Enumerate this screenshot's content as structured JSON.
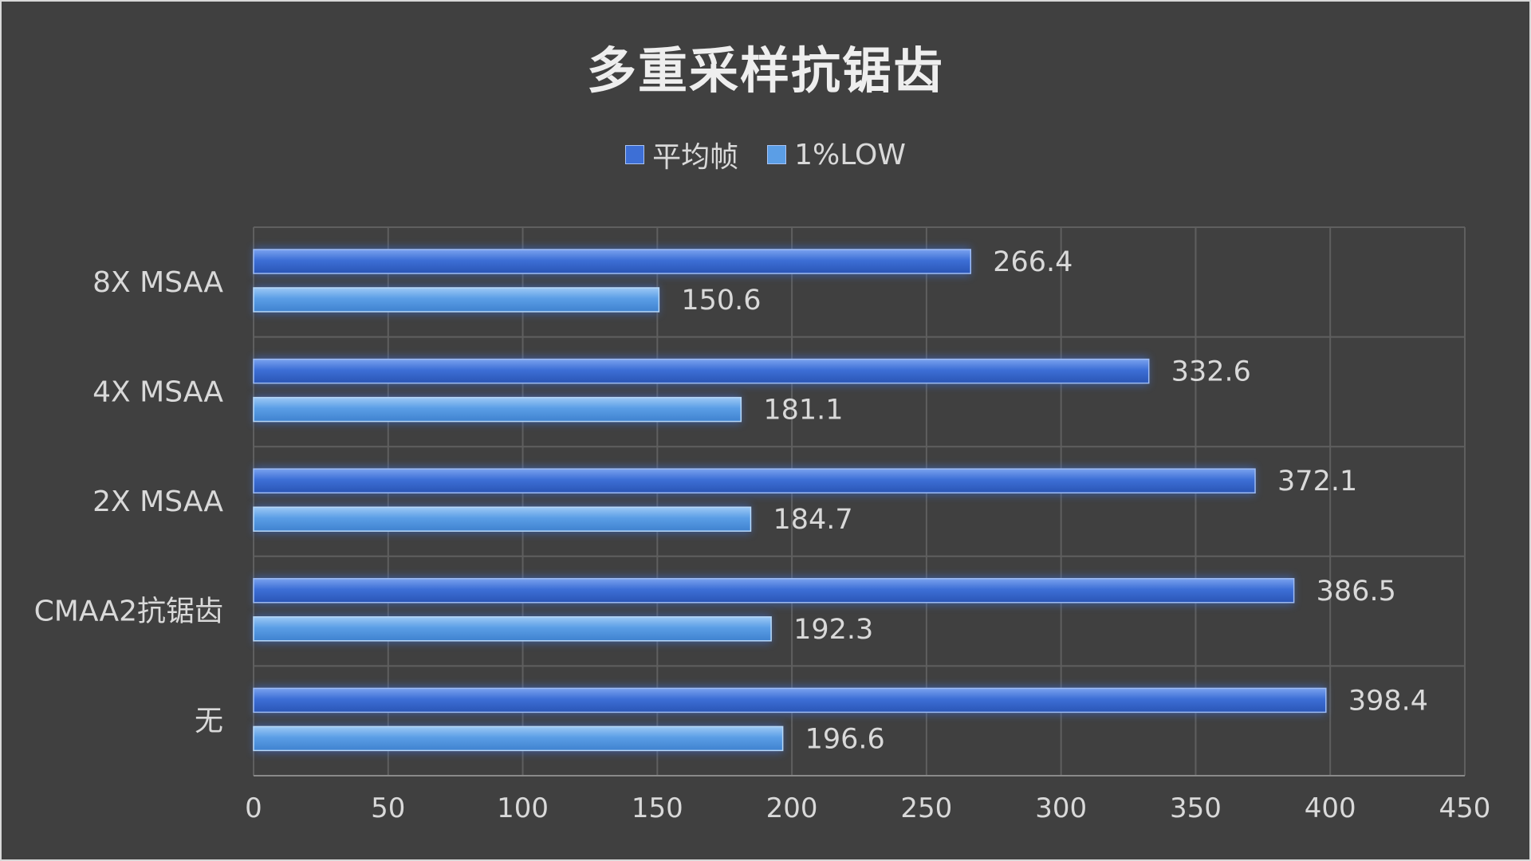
{
  "chart_data": {
    "type": "bar",
    "orientation": "horizontal",
    "title": "多重采样抗锯齿",
    "categories": [
      "8X MSAA",
      "4X MSAA",
      "2X MSAA",
      "CMAA2抗锯齿",
      "无"
    ],
    "series": [
      {
        "name": "平均帧",
        "values": [
          266.4,
          332.6,
          372.1,
          386.5,
          398.4
        ],
        "color": "#3d6fd6"
      },
      {
        "name": "1%LOW",
        "values": [
          150.6,
          181.1,
          184.7,
          192.3,
          196.6
        ],
        "color": "#5b9ee6"
      }
    ],
    "xlim": [
      0,
      450
    ],
    "xticks": [
      0,
      50,
      100,
      150,
      200,
      250,
      300,
      350,
      400,
      450
    ],
    "grid": true,
    "legend_position": "top"
  }
}
